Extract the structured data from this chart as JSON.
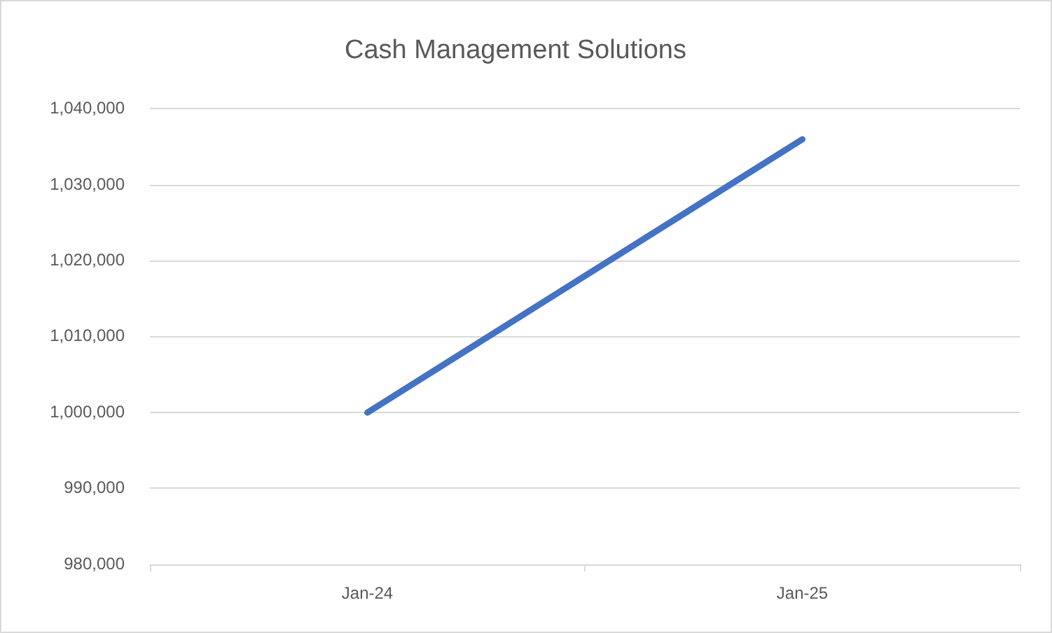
{
  "chart_data": {
    "type": "line",
    "title": "Cash Management Solutions",
    "categories": [
      "Jan-24",
      "Jan-25"
    ],
    "series": [
      {
        "color": "#4472c4",
        "values": [
          1000000,
          1036000
        ]
      }
    ],
    "ylim": [
      980000,
      1040000
    ],
    "yticks": [
      {
        "value": 980000,
        "label": "980,000"
      },
      {
        "value": 990000,
        "label": "990,000"
      },
      {
        "value": 1000000,
        "label": "1,000,000"
      },
      {
        "value": 1010000,
        "label": "1,010,000"
      },
      {
        "value": 1020000,
        "label": "1,020,000"
      },
      {
        "value": 1030000,
        "label": "1,030,000"
      },
      {
        "value": 1040000,
        "label": "1,040,000"
      }
    ],
    "grid": "y",
    "marker": "none",
    "line_style": "solid"
  }
}
